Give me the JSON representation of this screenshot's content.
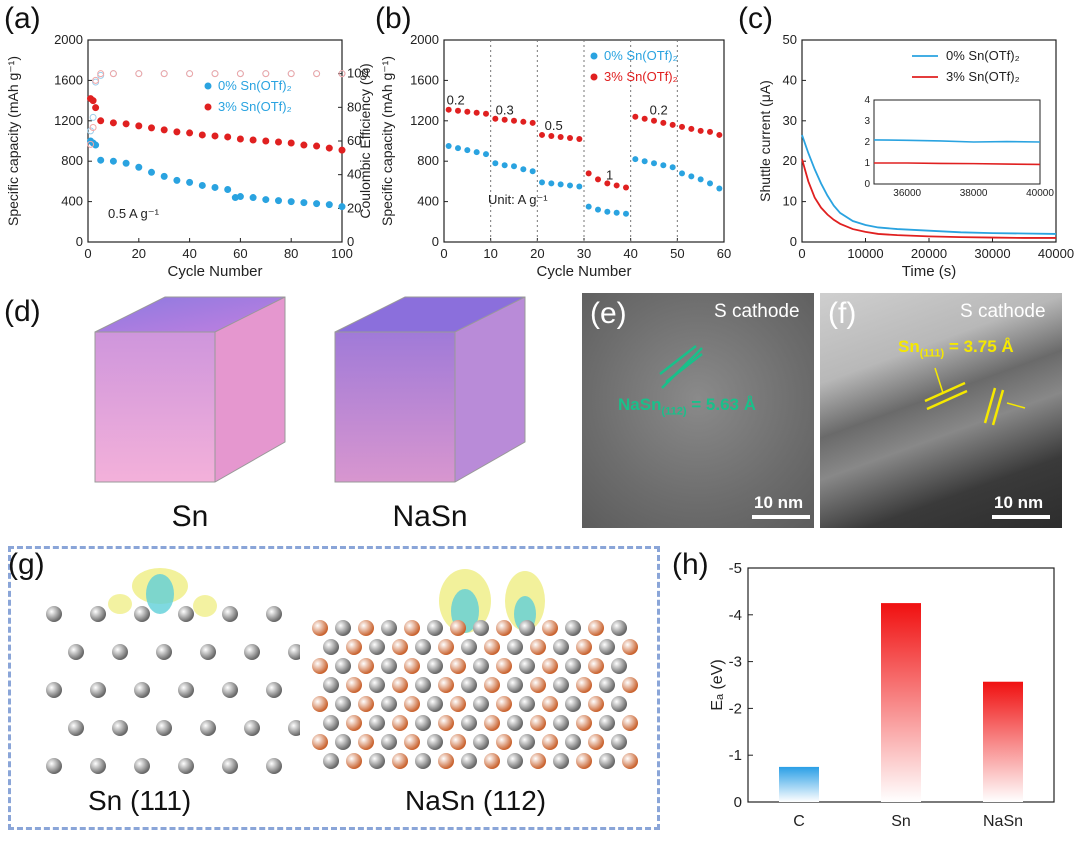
{
  "panels": {
    "a": "(a)",
    "b": "(b)",
    "c": "(c)",
    "d": "(d)",
    "e": "(e)",
    "f": "(f)",
    "g": "(g)",
    "h": "(h)"
  },
  "colors": {
    "blue": "#2aa3e0",
    "red": "#e02020",
    "pink": "#f2a6a6",
    "lightblue": "#9ccdea",
    "tealLattice": "#19c08a",
    "yellowLattice": "#f5e800"
  },
  "chart_data": [
    {
      "id": "a",
      "type": "scatter",
      "xlabel": "Cycle Number",
      "ylabel": "Specific capacity (mAh g⁻¹)",
      "y2label": "Coulombic Efficiency (%)",
      "xlim": [
        0,
        100
      ],
      "ylim": [
        0,
        2000
      ],
      "y2lim": [
        0,
        120
      ],
      "xticks": [
        0,
        20,
        40,
        60,
        80,
        100
      ],
      "yticks": [
        0,
        400,
        800,
        1200,
        1600,
        2000
      ],
      "y2ticks": [
        0,
        20,
        40,
        60,
        80,
        100
      ],
      "annotation": "0.5 A g⁻¹",
      "legend": [
        "0% Sn(OTf)₂",
        "3% Sn(OTf)₂"
      ],
      "series": [
        {
          "name": "0% Sn(OTf)₂",
          "color": "blue",
          "x": [
            1,
            2,
            3,
            5,
            10,
            15,
            20,
            25,
            30,
            35,
            40,
            45,
            50,
            55,
            58,
            60,
            65,
            70,
            75,
            80,
            85,
            90,
            95,
            100
          ],
          "y": [
            1000,
            980,
            960,
            810,
            800,
            780,
            740,
            690,
            650,
            610,
            590,
            560,
            540,
            520,
            440,
            450,
            440,
            420,
            410,
            400,
            390,
            380,
            370,
            350
          ]
        },
        {
          "name": "3% Sn(OTf)₂",
          "color": "red",
          "x": [
            1,
            2,
            3,
            5,
            10,
            15,
            20,
            25,
            30,
            35,
            40,
            45,
            50,
            55,
            60,
            65,
            70,
            75,
            80,
            85,
            90,
            95,
            100
          ],
          "y": [
            1420,
            1400,
            1330,
            1200,
            1180,
            1170,
            1150,
            1130,
            1110,
            1090,
            1080,
            1060,
            1050,
            1040,
            1020,
            1010,
            1000,
            990,
            980,
            960,
            950,
            930,
            910
          ]
        },
        {
          "name": "CE 0%",
          "color": "lightblue",
          "axis": "y2",
          "x": [
            1,
            2,
            3,
            5,
            10,
            20,
            30,
            40,
            50,
            60,
            70,
            80,
            90,
            100
          ],
          "y": [
            66,
            74,
            95,
            99,
            100,
            100,
            100,
            100,
            100,
            100,
            100,
            100,
            100,
            100
          ]
        },
        {
          "name": "CE 3%",
          "color": "pink",
          "axis": "y2",
          "x": [
            1,
            2,
            3,
            5,
            10,
            20,
            30,
            40,
            50,
            60,
            70,
            80,
            90,
            100
          ],
          "y": [
            58,
            68,
            96,
            100,
            100,
            100,
            100,
            100,
            100,
            100,
            100,
            100,
            100,
            100
          ]
        }
      ]
    },
    {
      "id": "b",
      "type": "scatter",
      "xlabel": "Cycle Number",
      "ylabel": "Specific capacity (mAh g⁻¹)",
      "xlim": [
        0,
        60
      ],
      "ylim": [
        0,
        2000
      ],
      "xticks": [
        0,
        10,
        20,
        30,
        40,
        50,
        60
      ],
      "yticks": [
        0,
        400,
        800,
        1200,
        1600,
        2000
      ],
      "vlines": [
        10,
        20,
        30,
        40,
        50
      ],
      "annotation": "Unit: A g⁻¹",
      "rate_labels": [
        {
          "text": "0.2",
          "x": 2.5,
          "y": 1360
        },
        {
          "text": "0.3",
          "x": 13,
          "y": 1260
        },
        {
          "text": "0.5",
          "x": 23.5,
          "y": 1110
        },
        {
          "text": "1",
          "x": 35.5,
          "y": 620
        },
        {
          "text": "0.2",
          "x": 46,
          "y": 1260
        }
      ],
      "legend": [
        "0% Sn(OTf)₂",
        "3% Sn(OTf)₂"
      ],
      "series": [
        {
          "name": "0% Sn(OTf)₂",
          "color": "blue",
          "x": [
            1,
            3,
            5,
            7,
            9,
            11,
            13,
            15,
            17,
            19,
            21,
            23,
            25,
            27,
            29,
            31,
            33,
            35,
            37,
            39,
            41,
            43,
            45,
            47,
            49,
            51,
            53,
            55,
            57,
            59
          ],
          "y": [
            950,
            930,
            910,
            890,
            870,
            780,
            760,
            750,
            720,
            700,
            590,
            580,
            570,
            560,
            550,
            350,
            320,
            300,
            290,
            280,
            820,
            800,
            780,
            760,
            740,
            680,
            650,
            620,
            580,
            530
          ]
        },
        {
          "name": "3% Sn(OTf)₂",
          "color": "red",
          "x": [
            1,
            3,
            5,
            7,
            9,
            11,
            13,
            15,
            17,
            19,
            21,
            23,
            25,
            27,
            29,
            31,
            33,
            35,
            37,
            39,
            41,
            43,
            45,
            47,
            49,
            51,
            53,
            55,
            57,
            59
          ],
          "y": [
            1310,
            1300,
            1290,
            1280,
            1270,
            1220,
            1210,
            1200,
            1190,
            1180,
            1060,
            1050,
            1040,
            1030,
            1020,
            680,
            620,
            580,
            560,
            540,
            1240,
            1220,
            1200,
            1180,
            1160,
            1140,
            1120,
            1100,
            1090,
            1060
          ]
        }
      ]
    },
    {
      "id": "c",
      "type": "line",
      "xlabel": "Time (s)",
      "ylabel": "Shuttle current (μA)",
      "xlim": [
        0,
        40000
      ],
      "ylim": [
        0,
        50
      ],
      "xticks": [
        0,
        10000,
        20000,
        30000,
        40000
      ],
      "yticks": [
        0,
        10,
        20,
        30,
        40,
        50
      ],
      "legend": [
        "0% Sn(OTf)₂",
        "3% Sn(OTf)₂"
      ],
      "series": [
        {
          "name": "0% Sn(OTf)₂",
          "color": "blue",
          "x": [
            0,
            1000,
            2000,
            3000,
            4000,
            5000,
            6000,
            8000,
            10000,
            12000,
            15000,
            20000,
            25000,
            30000,
            35000,
            40000
          ],
          "y": [
            26.5,
            22,
            18,
            14.5,
            11.5,
            9,
            7.2,
            5.2,
            4.2,
            3.6,
            3.2,
            2.8,
            2.4,
            2.2,
            2.1,
            2.0
          ]
        },
        {
          "name": "3% Sn(OTf)₂",
          "color": "red",
          "x": [
            0,
            1000,
            2000,
            3000,
            4000,
            5000,
            6000,
            8000,
            10000,
            12000,
            15000,
            20000,
            25000,
            30000,
            35000,
            40000
          ],
          "y": [
            20.5,
            15,
            11,
            8.5,
            6.8,
            5.5,
            4.5,
            3.2,
            2.5,
            2.0,
            1.7,
            1.4,
            1.2,
            1.1,
            1.0,
            1.0
          ]
        }
      ],
      "inset": {
        "xlim": [
          35000,
          40000
        ],
        "ylim": [
          0,
          4
        ],
        "xticks": [
          36000,
          38000,
          40000
        ],
        "yticks": [
          0,
          1,
          2,
          3,
          4
        ],
        "series": [
          {
            "color": "blue",
            "x": [
              35000,
              36000,
              37000,
              38000,
              39000,
              40000
            ],
            "y": [
              2.1,
              2.08,
              2.05,
              2.0,
              2.02,
              2.0
            ]
          },
          {
            "color": "red",
            "x": [
              35000,
              36000,
              37000,
              38000,
              39000,
              40000
            ],
            "y": [
              1.0,
              1.0,
              0.98,
              0.97,
              0.95,
              0.93
            ]
          }
        ]
      }
    },
    {
      "id": "h",
      "type": "bar",
      "ylabel": "Eₐ (eV)",
      "categories": [
        "C",
        "Sn",
        "NaSn"
      ],
      "values": [
        -0.75,
        -4.25,
        -2.57
      ],
      "ylim": [
        0,
        -5
      ],
      "yticks": [
        0,
        -1,
        -2,
        -3,
        -4,
        -5
      ],
      "bar_colors": [
        "blue",
        "red",
        "red"
      ]
    }
  ],
  "cubes": {
    "left_label": "Sn",
    "right_label": "NaSn"
  },
  "tem": {
    "e_caption": "S cathode",
    "e_lattice": "NaSn",
    "e_lattice_sub": "(112)",
    "e_lattice_val": " = 5.63 Å",
    "e_scale": "10 nm",
    "f_caption": "S cathode",
    "f_lattice": "Sn",
    "f_lattice_sub": "(111)",
    "f_lattice_val": " = 3.75 Å",
    "f_scale": "10 nm"
  },
  "slabs": {
    "left_label": "Sn (111)",
    "right_label": "NaSn (112)"
  }
}
